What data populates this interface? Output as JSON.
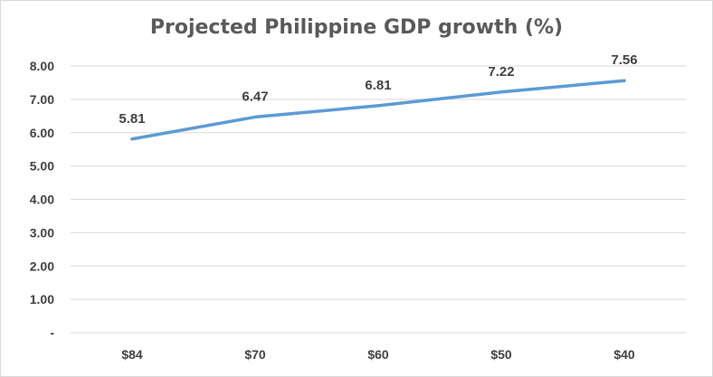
{
  "chart_data": {
    "type": "line",
    "title": "Projected Philippine GDP growth (%)",
    "xlabel": "",
    "ylabel": "",
    "categories": [
      "$84",
      "$70",
      "$60",
      "$50",
      "$40"
    ],
    "series": [
      {
        "values": [
          5.81,
          6.47,
          6.81,
          7.22,
          7.56
        ]
      }
    ],
    "data_labels": [
      "5.81",
      "6.47",
      "6.81",
      "7.22",
      "7.56"
    ],
    "ylim": [
      0,
      8
    ],
    "y_ticks": [
      {
        "value": 0,
        "label": "-"
      },
      {
        "value": 1,
        "label": "1.00"
      },
      {
        "value": 2,
        "label": "2.00"
      },
      {
        "value": 3,
        "label": "3.00"
      },
      {
        "value": 4,
        "label": "4.00"
      },
      {
        "value": 5,
        "label": "5.00"
      },
      {
        "value": 6,
        "label": "6.00"
      },
      {
        "value": 7,
        "label": "7.00"
      },
      {
        "value": 8,
        "label": "8.00"
      }
    ],
    "grid": true,
    "legend": "none",
    "line_color": "#5b9bd5",
    "grid_color": "#d9d9d9",
    "text_color": "#404040"
  }
}
